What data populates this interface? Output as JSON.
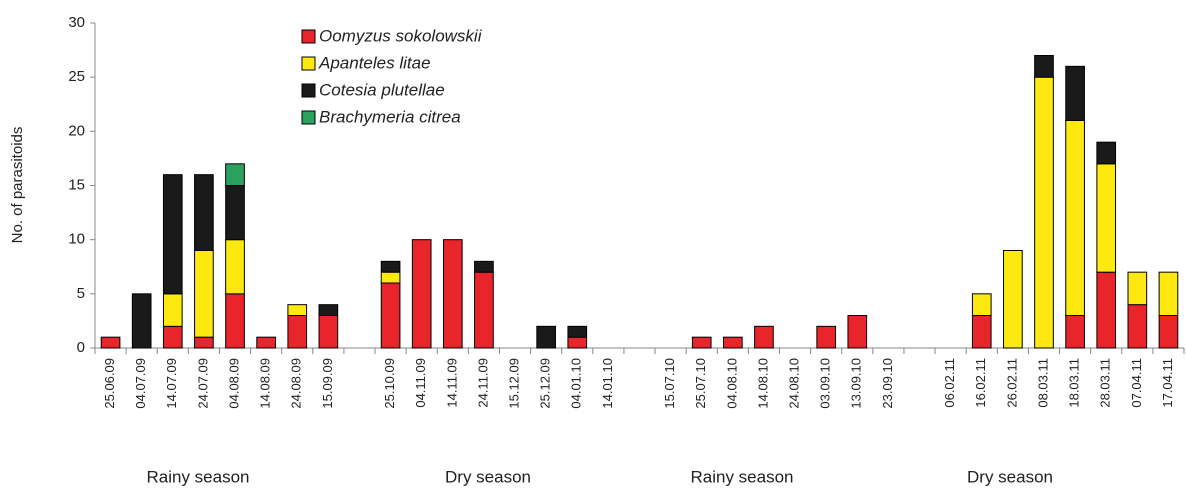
{
  "chart_data": {
    "type": "bar",
    "stacked": true,
    "ylabel": "No. of parasitoids",
    "categories": [
      "25.06.09",
      "04.07.09",
      "14.07.09",
      "24.07.09",
      "04.08.09",
      "14.08.09",
      "24.08.09",
      "15.09.09",
      null,
      "25.10.09",
      "04.11.09",
      "14.11.09",
      "24.11.09",
      "15.12.09",
      "25.12.09",
      "04.01.10",
      "14.01.10",
      null,
      "15.07.10",
      "25.07.10",
      "04.08.10",
      "14.08.10",
      "24.08.10",
      "03.09.10",
      "13.09.10",
      "23.09.10",
      null,
      "06.02.11",
      "16.02.11",
      "26.02.11",
      "08.03.11",
      "18.03.11",
      "28.03.11",
      "07.04.11",
      "17.04.11"
    ],
    "series": [
      {
        "name": "Oomyzus sokolowskii",
        "color": "#e8252a",
        "values": [
          1,
          0,
          2,
          1,
          5,
          1,
          3,
          3,
          null,
          6,
          10,
          10,
          7,
          0,
          0,
          1,
          0,
          null,
          0,
          1,
          1,
          2,
          0,
          2,
          3,
          0,
          null,
          0,
          3,
          0,
          0,
          3,
          7,
          4,
          3
        ]
      },
      {
        "name": "Apanteles litae",
        "color": "#fde910",
        "values": [
          0,
          0,
          3,
          8,
          5,
          0,
          1,
          0,
          null,
          1,
          0,
          0,
          0,
          0,
          0,
          0,
          0,
          null,
          0,
          0,
          0,
          0,
          0,
          0,
          0,
          0,
          null,
          0,
          2,
          9,
          25,
          18,
          10,
          3,
          4
        ]
      },
      {
        "name": "Cotesia plutellae",
        "color": "#1a1a1a",
        "values": [
          0,
          5,
          11,
          7,
          5,
          0,
          0,
          1,
          null,
          1,
          0,
          0,
          1,
          0,
          2,
          1,
          0,
          null,
          0,
          0,
          0,
          0,
          0,
          0,
          0,
          0,
          null,
          0,
          0,
          0,
          2,
          5,
          2,
          0,
          0
        ]
      },
      {
        "name": "Brachymeria citrea",
        "color": "#2ca25f",
        "values": [
          0,
          0,
          0,
          0,
          2,
          0,
          0,
          0,
          null,
          0,
          0,
          0,
          0,
          0,
          0,
          0,
          0,
          null,
          0,
          0,
          0,
          0,
          0,
          0,
          0,
          0,
          null,
          0,
          0,
          0,
          0,
          0,
          0,
          0,
          0
        ]
      }
    ],
    "annotations": [
      "Rainy season",
      "Dry season",
      "Rainy season",
      "Dry season"
    ],
    "ylim": [
      0,
      30
    ],
    "yticks": [
      0,
      5,
      10,
      15,
      20,
      25,
      30
    ],
    "grid": false,
    "legend": "upper left"
  }
}
